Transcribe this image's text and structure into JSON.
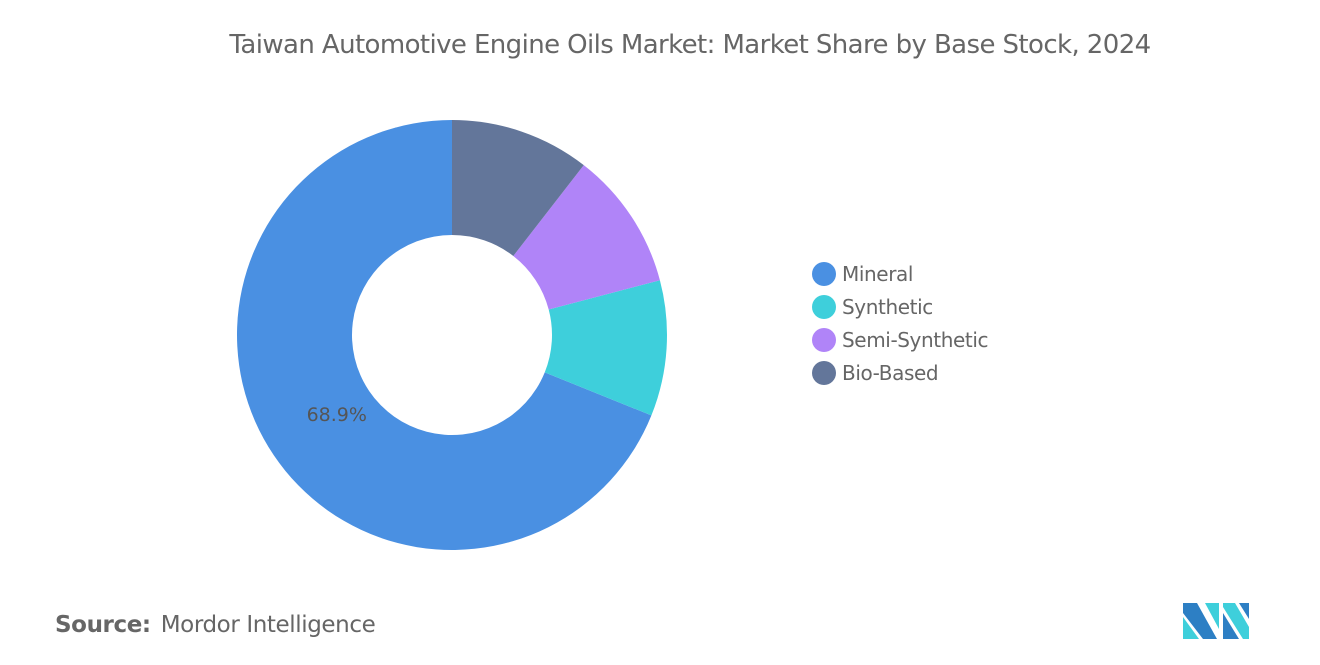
{
  "chart_data": {
    "type": "pie",
    "variant": "donut",
    "title": "Taiwan Automotive Engine Oils Market: Market Share by Base Stock, 2024",
    "categories": [
      "Mineral",
      "Synthetic",
      "Semi-Synthetic",
      "Bio-Based"
    ],
    "values": [
      68.9,
      10.2,
      10.4,
      10.5
    ],
    "colors": [
      "#4a90e2",
      "#3ecfdb",
      "#b084f8",
      "#63769a"
    ],
    "data_labels": [
      {
        "category": "Mineral",
        "text": "68.9%"
      }
    ],
    "legend_position": "right",
    "direction": "counterclockwise from top"
  },
  "source": {
    "label": "Source:",
    "value": "Mordor Intelligence"
  },
  "logo": {
    "text": "Mordor Intelligence",
    "colors": [
      "#2d7fc4",
      "#3ecfdb"
    ]
  }
}
